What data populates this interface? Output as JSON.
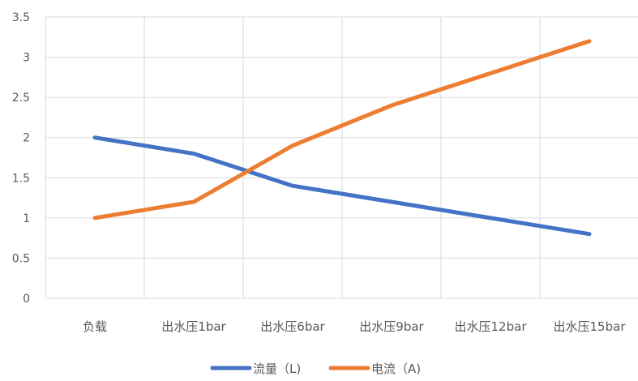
{
  "chart_data": {
    "type": "line",
    "title": "",
    "xlabel": "",
    "ylabel": "",
    "categories": [
      "负载",
      "出水压1bar",
      "出水压6bar",
      "出水压9bar",
      "出水压12bar",
      "出水压15bar"
    ],
    "series": [
      {
        "name": "流量（L)",
        "values": [
          2.0,
          1.8,
          1.4,
          1.2,
          1.0,
          0.8
        ],
        "color": "#4472C4"
      },
      {
        "name": "电流（A)",
        "values": [
          1.0,
          1.2,
          1.9,
          2.4,
          2.8,
          3.2
        ],
        "color": "#ED7D31"
      }
    ],
    "ylim": [
      0,
      3.5
    ],
    "yticks": [
      "0",
      "0.5",
      "1",
      "1.5",
      "2",
      "2.5",
      "3",
      "3.5"
    ],
    "grid": true,
    "legend": "bottom"
  }
}
